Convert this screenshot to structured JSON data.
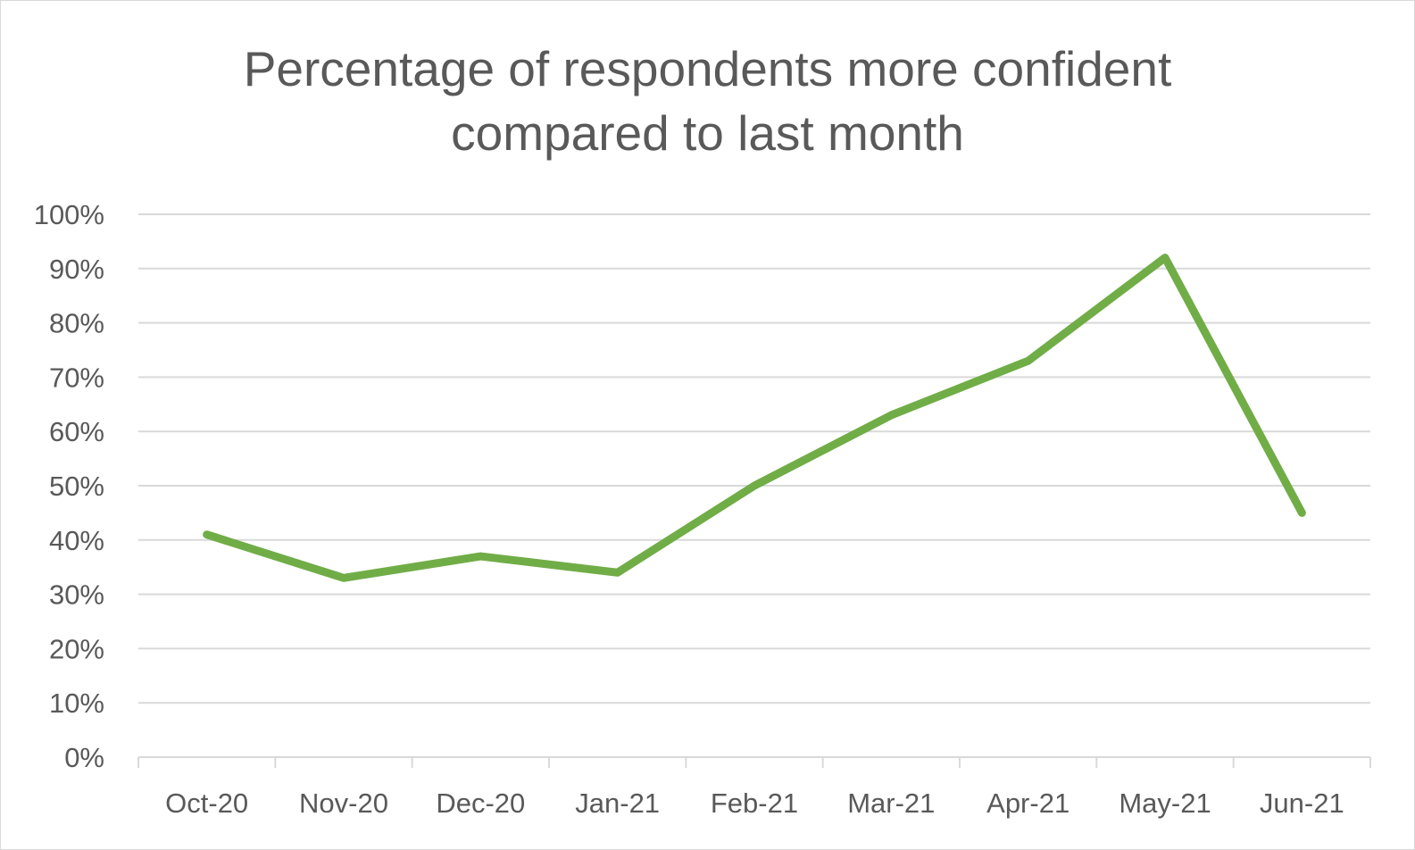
{
  "chart_data": {
    "type": "line",
    "title_lines": [
      "Percentage of respondents more confident",
      "compared to last month"
    ],
    "xlabel": "",
    "ylabel": "",
    "categories": [
      "Oct-20",
      "Nov-20",
      "Dec-20",
      "Jan-21",
      "Feb-21",
      "Mar-21",
      "Apr-21",
      "May-21",
      "Jun-21"
    ],
    "series": [
      {
        "values": [
          41,
          33,
          37,
          34,
          50,
          63,
          73,
          92,
          45
        ],
        "color": "#70ad47"
      }
    ],
    "ylim": [
      0,
      100
    ],
    "yticks": [
      0,
      10,
      20,
      30,
      40,
      50,
      60,
      70,
      80,
      90,
      100
    ],
    "ytick_labels": [
      "0%",
      "10%",
      "20%",
      "30%",
      "40%",
      "50%",
      "60%",
      "70%",
      "80%",
      "90%",
      "100%"
    ],
    "grid": true,
    "legend": "none"
  }
}
